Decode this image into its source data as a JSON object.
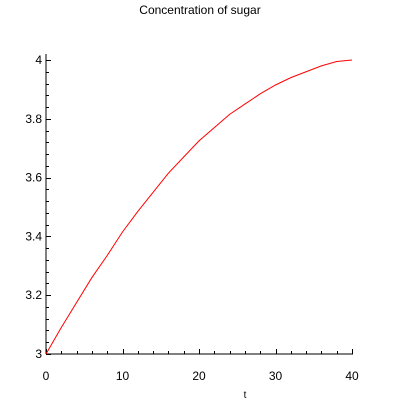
{
  "chart_data": {
    "type": "line",
    "title": "Concentration of sugar",
    "xlabel": "t",
    "ylabel": "",
    "xlim": [
      0,
      40
    ],
    "ylim": [
      3,
      4
    ],
    "x_ticks": [
      0,
      10,
      20,
      30,
      40
    ],
    "x_tick_labels": [
      "0",
      "10",
      "20",
      "30",
      "40"
    ],
    "y_ticks": [
      3,
      3.2,
      3.4,
      3.6,
      3.8,
      4
    ],
    "y_tick_labels": [
      "3",
      "3.2",
      "3.4",
      "3.6",
      "3.8",
      "4"
    ],
    "grid": false,
    "series": [
      {
        "color": "#ff0000",
        "x": [
          0,
          2,
          4,
          6,
          8,
          10,
          12,
          14,
          16,
          18,
          20,
          22,
          24,
          26,
          28,
          30,
          32,
          34,
          36,
          38,
          40
        ],
        "y": [
          3.0,
          3.09,
          3.175,
          3.26,
          3.335,
          3.415,
          3.485,
          3.55,
          3.615,
          3.67,
          3.725,
          3.77,
          3.815,
          3.85,
          3.885,
          3.915,
          3.94,
          3.96,
          3.98,
          3.995,
          4.0
        ]
      }
    ]
  }
}
